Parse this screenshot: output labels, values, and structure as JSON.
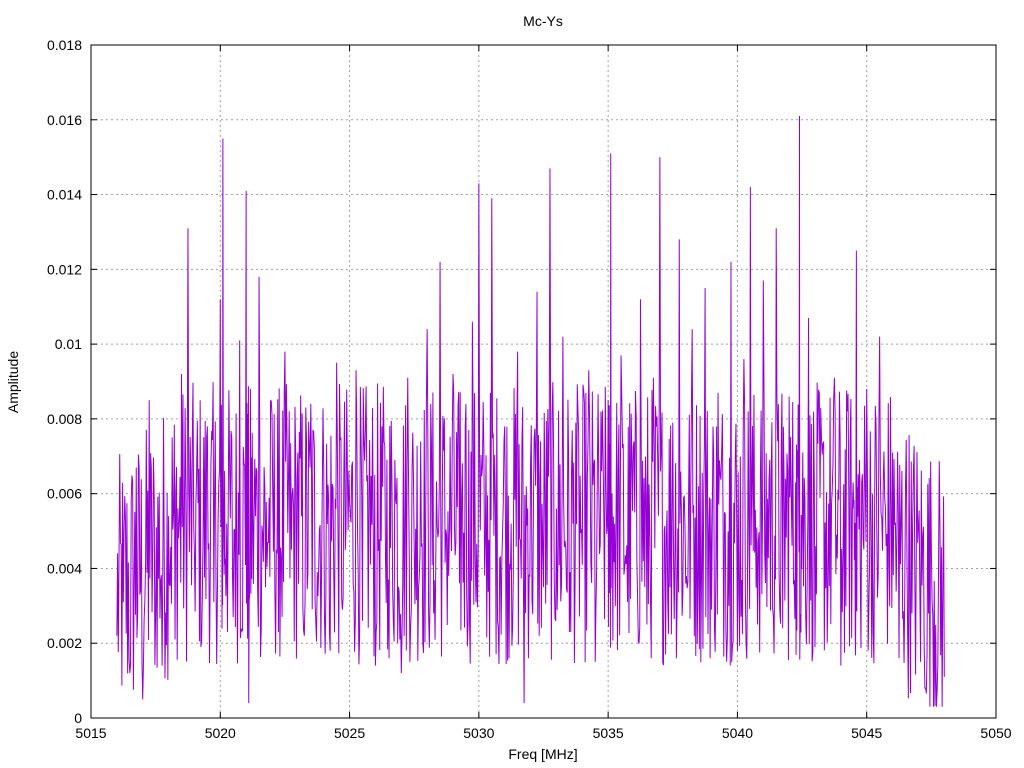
{
  "chart_data": {
    "type": "line",
    "title": "Mc-Ys",
    "xlabel": "Freq [MHz]",
    "ylabel": "Amplitude",
    "xlim": [
      5015,
      5050
    ],
    "ylim": [
      0,
      0.018
    ],
    "x_ticks": [
      "5015",
      "5020",
      "5025",
      "5030",
      "5035",
      "5040",
      "5045",
      "5050"
    ],
    "y_ticks": [
      "0",
      "0.002",
      "0.004",
      "0.006",
      "0.008",
      "0.01",
      "0.012",
      "0.014",
      "0.016",
      "0.018"
    ],
    "grid": true,
    "series": [
      {
        "color": "#9400d3",
        "x": [
          5016.0,
          5016.25,
          5016.5,
          5016.75,
          5017.0,
          5017.25,
          5017.5,
          5017.75,
          5018.0,
          5018.25,
          5018.5,
          5018.75,
          5019.0,
          5019.25,
          5019.5,
          5019.75,
          5020.0,
          5020.1,
          5020.25,
          5020.5,
          5020.75,
          5021.0,
          5021.1,
          5021.25,
          5021.5,
          5021.75,
          5022.0,
          5022.25,
          5022.5,
          5022.75,
          5023.0,
          5023.25,
          5023.5,
          5023.75,
          5024.0,
          5024.25,
          5024.5,
          5024.75,
          5025.0,
          5025.25,
          5025.5,
          5025.75,
          5026.0,
          5026.25,
          5026.5,
          5026.75,
          5027.0,
          5027.25,
          5027.5,
          5027.75,
          5028.0,
          5028.25,
          5028.5,
          5028.75,
          5029.0,
          5029.25,
          5029.5,
          5029.75,
          5030.0,
          5030.25,
          5030.5,
          5030.75,
          5031.0,
          5031.25,
          5031.5,
          5031.75,
          5032.0,
          5032.25,
          5032.5,
          5032.75,
          5033.0,
          5033.25,
          5033.5,
          5033.75,
          5034.0,
          5034.25,
          5034.5,
          5034.75,
          5035.0,
          5035.1,
          5035.25,
          5035.5,
          5035.75,
          5036.0,
          5036.25,
          5036.5,
          5036.75,
          5037.0,
          5037.25,
          5037.5,
          5037.75,
          5038.0,
          5038.25,
          5038.5,
          5038.75,
          5039.0,
          5039.25,
          5039.5,
          5039.75,
          5040.0,
          5040.25,
          5040.5,
          5040.75,
          5041.0,
          5041.25,
          5041.5,
          5041.75,
          5042.0,
          5042.25,
          5042.4,
          5042.5,
          5042.75,
          5043.0,
          5043.25,
          5043.5,
          5043.75,
          5044.0,
          5044.25,
          5044.5,
          5044.6,
          5044.75,
          5045.0,
          5045.25,
          5045.5,
          5045.75,
          5046.0,
          5046.25,
          5046.5,
          5046.75,
          5047.0,
          5047.25,
          5047.5,
          5047.75,
          5048.0
        ],
        "y": [
          0.0022,
          0.0031,
          0.0012,
          0.0067,
          0.0005,
          0.0085,
          0.0028,
          0.0014,
          0.0054,
          0.0021,
          0.0092,
          0.0131,
          0.0044,
          0.0019,
          0.0078,
          0.0031,
          0.0112,
          0.0155,
          0.0052,
          0.0027,
          0.0101,
          0.0141,
          0.0004,
          0.0062,
          0.0118,
          0.0035,
          0.0081,
          0.0023,
          0.0098,
          0.0045,
          0.0071,
          0.0022,
          0.0084,
          0.0039,
          0.0067,
          0.0018,
          0.0095,
          0.0032,
          0.0058,
          0.0093,
          0.0026,
          0.0061,
          0.0014,
          0.0078,
          0.0037,
          0.0069,
          0.0012,
          0.0091,
          0.0045,
          0.0074,
          0.0104,
          0.0028,
          0.0122,
          0.0049,
          0.0092,
          0.0036,
          0.0084,
          0.0106,
          0.0143,
          0.0047,
          0.0139,
          0.0024,
          0.0078,
          0.0052,
          0.0098,
          0.0004,
          0.0068,
          0.0114,
          0.0035,
          0.0147,
          0.0056,
          0.0102,
          0.0023,
          0.0079,
          0.0041,
          0.0093,
          0.0015,
          0.0066,
          0.0085,
          0.0151,
          0.0052,
          0.0097,
          0.0031,
          0.0074,
          0.0112,
          0.0025,
          0.0091,
          0.015,
          0.0048,
          0.0079,
          0.0128,
          0.0036,
          0.0104,
          0.0062,
          0.0115,
          0.0029,
          0.0087,
          0.0055,
          0.0122,
          0.0018,
          0.0096,
          0.0142,
          0.0051,
          0.0117,
          0.0069,
          0.0131,
          0.0024,
          0.0086,
          0.0063,
          0.0161,
          0.0048,
          0.0107,
          0.0019,
          0.0075,
          0.0034,
          0.0091,
          0.0014,
          0.0082,
          0.0056,
          0.0125,
          0.0039,
          0.0088,
          0.0023,
          0.0102,
          0.0046,
          0.0071,
          0.0016,
          0.0062,
          0.0028,
          0.0051,
          0.0008,
          0.0045,
          0.0014,
          0.0011
        ]
      }
    ]
  }
}
